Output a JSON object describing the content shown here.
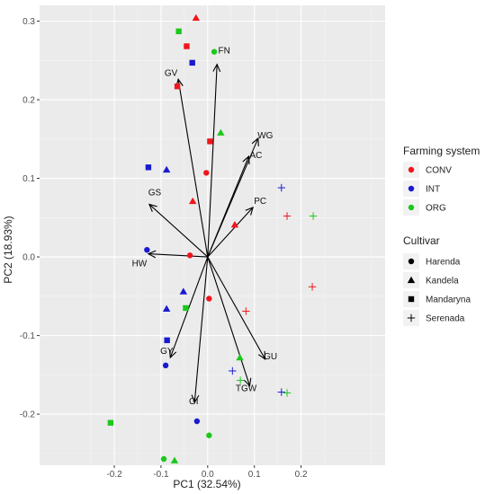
{
  "chart_data": {
    "type": "scatter",
    "subtype": "pca-biplot",
    "title": "",
    "xlabel": "PC1 (32.54%)",
    "ylabel": "PC2 (18.93%)",
    "xlim": [
      -0.36,
      0.38
    ],
    "ylim": [
      -0.265,
      0.32
    ],
    "x_ticks": [
      -0.2,
      -0.1,
      0.0,
      0.1,
      0.2
    ],
    "x_tick_labels": [
      "-0.2",
      "-0.1",
      "0.0",
      "0.1",
      "0.2"
    ],
    "y_ticks": [
      -0.2,
      -0.1,
      0.0,
      0.1,
      0.2,
      0.3
    ],
    "y_tick_labels": [
      "-0.2",
      "-0.1",
      "0.0",
      "0.1",
      "0.2",
      "0.3"
    ],
    "grid": true,
    "legend_position": "right",
    "colors": {
      "CONV": "#f0151b",
      "INT": "#1a1ad0",
      "ORG": "#1bc81b",
      "panel": "#ebebeb",
      "grid": "#ffffff"
    },
    "legends": {
      "farming": {
        "title": "Farming system",
        "items": [
          "CONV",
          "INT",
          "ORG"
        ]
      },
      "cultivar": {
        "title": "Cultivar",
        "items": [
          {
            "label": "Harenda",
            "shape": "circle"
          },
          {
            "label": "Kandela",
            "shape": "triangle"
          },
          {
            "label": "Mandaryna",
            "shape": "square"
          },
          {
            "label": "Serenada",
            "shape": "plus"
          }
        ]
      }
    },
    "loadings": [
      {
        "label": "FN",
        "x": 0.02,
        "y": 0.245
      },
      {
        "label": "GV",
        "x": -0.063,
        "y": 0.226
      },
      {
        "label": "WG",
        "x": 0.108,
        "y": 0.151
      },
      {
        "label": "AC",
        "x": 0.088,
        "y": 0.128
      },
      {
        "label": "PC",
        "x": 0.097,
        "y": 0.063
      },
      {
        "label": "GS",
        "x": -0.125,
        "y": 0.067
      },
      {
        "label": "HW",
        "x": -0.127,
        "y": 0.004
      },
      {
        "label": "GY",
        "x": -0.08,
        "y": -0.128
      },
      {
        "label": "GI",
        "x": -0.028,
        "y": -0.185
      },
      {
        "label": "TGW",
        "x": 0.09,
        "y": -0.164
      },
      {
        "label": "GU",
        "x": 0.123,
        "y": -0.13
      }
    ],
    "series": [
      {
        "name": "CONV",
        "farming": "CONV",
        "points": [
          {
            "cultivar": "Kandela",
            "x": -0.025,
            "y": 0.304
          },
          {
            "cultivar": "Mandaryna",
            "x": -0.045,
            "y": 0.268
          },
          {
            "cultivar": "Mandaryna",
            "x": -0.065,
            "y": 0.217
          },
          {
            "cultivar": "Mandaryna",
            "x": 0.005,
            "y": 0.147
          },
          {
            "cultivar": "Harenda",
            "x": -0.003,
            "y": 0.107
          },
          {
            "cultivar": "Kandela",
            "x": -0.032,
            "y": 0.071
          },
          {
            "cultivar": "Kandela",
            "x": 0.058,
            "y": 0.041
          },
          {
            "cultivar": "Harenda",
            "x": -0.038,
            "y": 0.002
          },
          {
            "cultivar": "Harenda",
            "x": 0.003,
            "y": -0.053
          },
          {
            "cultivar": "Serenada",
            "x": 0.082,
            "y": -0.069
          },
          {
            "cultivar": "Serenada",
            "x": 0.17,
            "y": 0.052
          },
          {
            "cultivar": "Serenada",
            "x": 0.224,
            "y": -0.038
          }
        ]
      },
      {
        "name": "INT",
        "farming": "INT",
        "points": [
          {
            "cultivar": "Mandaryna",
            "x": -0.033,
            "y": 0.247
          },
          {
            "cultivar": "Mandaryna",
            "x": -0.127,
            "y": 0.114
          },
          {
            "cultivar": "Kandela",
            "x": -0.088,
            "y": 0.111
          },
          {
            "cultivar": "Harenda",
            "x": -0.13,
            "y": 0.009
          },
          {
            "cultivar": "Kandela",
            "x": -0.052,
            "y": -0.044
          },
          {
            "cultivar": "Kandela",
            "x": -0.088,
            "y": -0.066
          },
          {
            "cultivar": "Mandaryna",
            "x": -0.087,
            "y": -0.106
          },
          {
            "cultivar": "Harenda",
            "x": -0.09,
            "y": -0.138
          },
          {
            "cultivar": "Harenda",
            "x": -0.023,
            "y": -0.209
          },
          {
            "cultivar": "Serenada",
            "x": 0.158,
            "y": 0.088
          },
          {
            "cultivar": "Serenada",
            "x": 0.053,
            "y": -0.145
          },
          {
            "cultivar": "Serenada",
            "x": 0.158,
            "y": -0.172
          }
        ]
      },
      {
        "name": "ORG",
        "farming": "ORG",
        "points": [
          {
            "cultivar": "Mandaryna",
            "x": -0.062,
            "y": 0.287
          },
          {
            "cultivar": "Harenda",
            "x": 0.014,
            "y": 0.261
          },
          {
            "cultivar": "Kandela",
            "x": 0.028,
            "y": 0.158
          },
          {
            "cultivar": "Mandaryna",
            "x": -0.047,
            "y": -0.065
          },
          {
            "cultivar": "Kandela",
            "x": 0.069,
            "y": -0.128
          },
          {
            "cultivar": "Harenda",
            "x": 0.003,
            "y": -0.227
          },
          {
            "cultivar": "Mandaryna",
            "x": -0.208,
            "y": -0.211
          },
          {
            "cultivar": "Harenda",
            "x": -0.094,
            "y": -0.257
          },
          {
            "cultivar": "Kandela",
            "x": -0.071,
            "y": -0.259
          },
          {
            "cultivar": "Serenada",
            "x": 0.226,
            "y": 0.052
          },
          {
            "cultivar": "Serenada",
            "x": 0.07,
            "y": -0.157
          },
          {
            "cultivar": "Serenada",
            "x": 0.17,
            "y": -0.173
          }
        ]
      }
    ]
  }
}
